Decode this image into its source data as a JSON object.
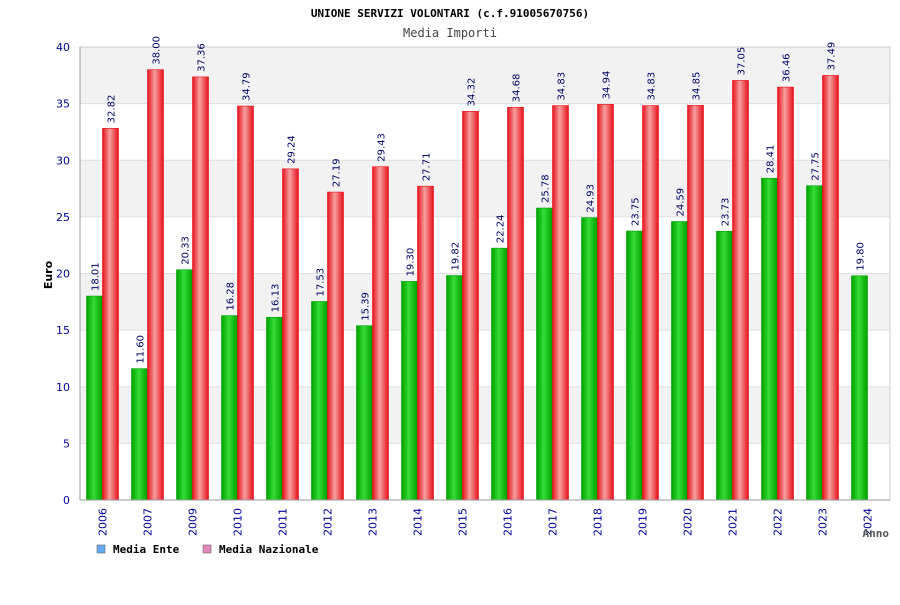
{
  "colors": {
    "ente": "#00a000",
    "ente_light": "#33dd33",
    "nazionale": "#e8101a",
    "nazionale_light": "#f5a0a0",
    "tick_label": "#000099",
    "value_label": "#000066",
    "band": "#f2f2f2",
    "legend_ente_swatch": "#66aaee",
    "legend_nazionale_swatch": "#e088bb"
  },
  "chart_data": {
    "type": "bar",
    "title": "UNIONE SERVIZI VOLONTARI (c.f.91005670756)",
    "subtitle": "Media Importi",
    "xlabel": "Anno",
    "ylabel": "Euro",
    "ylim": [
      0,
      40
    ],
    "yticks": [
      0,
      5,
      10,
      15,
      20,
      25,
      30,
      35,
      40
    ],
    "grid": true,
    "legend_position": "bottom-left",
    "categories": [
      "2006",
      "2007",
      "2009",
      "2010",
      "2011",
      "2012",
      "2013",
      "2014",
      "2015",
      "2016",
      "2017",
      "2018",
      "2019",
      "2020",
      "2021",
      "2022",
      "2023",
      "2024"
    ],
    "series": [
      {
        "name": "Media Ente",
        "values": [
          18.01,
          11.6,
          20.33,
          16.28,
          16.13,
          17.53,
          15.39,
          19.3,
          19.82,
          22.24,
          25.78,
          24.93,
          23.75,
          24.59,
          23.73,
          28.41,
          27.75,
          19.8
        ],
        "labels": [
          "18.01",
          "11.60",
          "20.33",
          "16.28",
          "16.13",
          "17.53",
          "15.39",
          "19.30",
          "19.82",
          "22.24",
          "25.78",
          "24.93",
          "23.75",
          "24.59",
          "23.73",
          "28.41",
          "27.75",
          "19.80"
        ]
      },
      {
        "name": "Media Nazionale",
        "values": [
          32.82,
          38.0,
          37.36,
          34.79,
          29.24,
          27.19,
          29.43,
          27.71,
          34.32,
          34.68,
          34.83,
          34.94,
          34.83,
          34.85,
          37.05,
          36.46,
          37.49,
          null
        ],
        "labels": [
          "32.82",
          "38.00",
          "37.36",
          "34.79",
          "29.24",
          "27.19",
          "29.43",
          "27.71",
          "34.32",
          "34.68",
          "34.83",
          "34.94",
          "34.83",
          "34.85",
          "37.05",
          "36.46",
          "37.49",
          ""
        ]
      }
    ]
  }
}
